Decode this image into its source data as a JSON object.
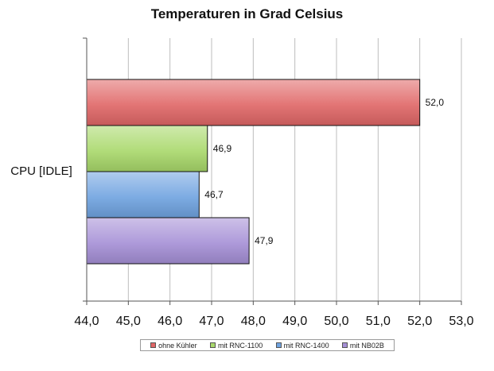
{
  "chart_data": {
    "type": "bar",
    "orientation": "horizontal",
    "title": "Temperaturen in Grad Celsius",
    "categories": [
      "CPU [IDLE]"
    ],
    "series": [
      {
        "name": "ohne Kühler",
        "values": [
          52.0
        ],
        "label": "52,0",
        "color": "#e06666"
      },
      {
        "name": "mit RNC-1100",
        "values": [
          46.9
        ],
        "label": "46,9",
        "color": "#a8d86a"
      },
      {
        "name": "mit RNC-1400",
        "values": [
          46.7
        ],
        "label": "46,7",
        "color": "#6fa3e0"
      },
      {
        "name": "mit NB02B",
        "values": [
          47.9
        ],
        "label": "47,9",
        "color": "#a58fd6"
      }
    ],
    "xlim": [
      44.0,
      53.0
    ],
    "ticks": [
      "44,0",
      "45,0",
      "46,0",
      "47,0",
      "48,0",
      "49,0",
      "50,0",
      "51,0",
      "52,0",
      "53,0"
    ],
    "tick_values": [
      44,
      45,
      46,
      47,
      48,
      49,
      50,
      51,
      52,
      53
    ],
    "grid": "vertical",
    "legend_position": "bottom"
  }
}
